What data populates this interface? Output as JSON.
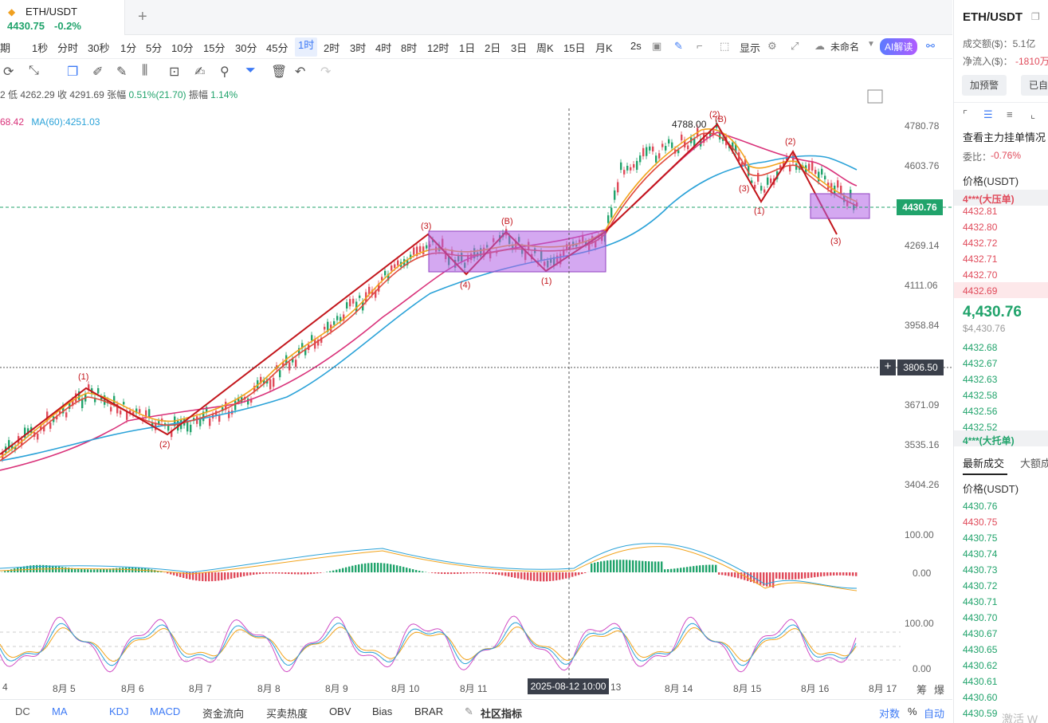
{
  "tab": {
    "symbol": "ETH/USDT",
    "price": "4430.75",
    "change": "-0.2%",
    "eth_icon": "ethereum-icon",
    "add_icon": "plus-icon"
  },
  "timeframes": [
    "期",
    "1秒",
    "分时",
    "30秒",
    "1分",
    "5分",
    "10分",
    "15分",
    "30分",
    "45分",
    "1时",
    "2时",
    "3时",
    "4时",
    "8时",
    "12时",
    "1日",
    "2日",
    "3日",
    "周K",
    "15日",
    "月K",
    "2s"
  ],
  "selected_timeframe": "1时",
  "toolbar_right": {
    "display": "显示",
    "unnamed": "未命名",
    "ai": "AI解读"
  },
  "info": {
    "line1_prefix": "2 低 4262.29 收 4291.69 张幅 ",
    "line1_amp": "0.51%(21.70)",
    "line1_sw_label": " 振幅 ",
    "line1_sw": "1.14%",
    "ma_prev": "68.42",
    "ma60": "MA(60):4251.03"
  },
  "y_axis": [
    "4780.78",
    "4603.76",
    "4269.14",
    "4111.06",
    "3958.84",
    "3671.09",
    "3535.16",
    "3404.26"
  ],
  "current_price_label": "4430.76",
  "crosshair_price": "3806.50",
  "crosshair_time": "2025-08-12 10:00",
  "high_label": "4788.00",
  "macd_axis": [
    "100.00",
    "0.00"
  ],
  "kdj_axis": [
    "100.00",
    "0.00"
  ],
  "x_axis": [
    "4",
    "8月 5",
    "8月 6",
    "8月 7",
    "8月 8",
    "8月 9",
    "8月 10",
    "8月 11",
    "13",
    "8月 14",
    "8月 15",
    "8月 16",
    "8月 17"
  ],
  "x_right": [
    "筹",
    "爆"
  ],
  "wave_labels": [
    {
      "t": "(1)"
    },
    {
      "t": "(2)"
    },
    {
      "t": "(3)"
    },
    {
      "t": "(4)"
    },
    {
      "t": "(B)"
    },
    {
      "t": "(1)"
    },
    {
      "t": "(2)"
    },
    {
      "t": "(B)"
    },
    {
      "t": "(3)"
    },
    {
      "t": "(1)"
    },
    {
      "t": "(2)"
    },
    {
      "t": "(3)"
    }
  ],
  "bottom_tabs": [
    "DC",
    "MA",
    "KDJ",
    "MACD",
    "资金流向",
    "买卖热度",
    "OBV",
    "Bias",
    "BRAR",
    "社区指标"
  ],
  "bottom_right": [
    "对数",
    "%",
    "自动"
  ],
  "right_panel": {
    "symbol": "ETH/USDT",
    "volume_label": "成交额($)：5.1亿",
    "netflow_label": "净流入($)：",
    "netflow_value": "-1810万",
    "alert_btn": "加预警",
    "auto_btn": "已自",
    "book_title": "查看主力挂单情况",
    "ratio_label": "委比：",
    "ratio_value": "-0.76%",
    "price_header": "价格(USDT)",
    "big_ask": "4***(大压单)",
    "asks": [
      "4432.81",
      "4432.80",
      "4432.72",
      "4432.71",
      "4432.70",
      "4432.69"
    ],
    "last_price": "4,430.76",
    "last_price_usd": "$4,430.76",
    "bids": [
      "4432.68",
      "4432.67",
      "4432.63",
      "4432.58",
      "4432.56",
      "4432.52"
    ],
    "big_bid": "4***(大托单)",
    "trades_tab": "最新成交",
    "big_trades_tab": "大额成",
    "trades_header": "价格(USDT)",
    "trades": [
      {
        "p": "4430.76",
        "side": "buy"
      },
      {
        "p": "4430.75",
        "side": "sell"
      },
      {
        "p": "4430.75",
        "side": "buy"
      },
      {
        "p": "4430.74",
        "side": "buy"
      },
      {
        "p": "4430.73",
        "side": "buy"
      },
      {
        "p": "4430.72",
        "side": "buy"
      },
      {
        "p": "4430.71",
        "side": "buy"
      },
      {
        "p": "4430.70",
        "side": "buy"
      },
      {
        "p": "4430.67",
        "side": "buy"
      },
      {
        "p": "4430.65",
        "side": "buy"
      },
      {
        "p": "4430.62",
        "side": "buy"
      },
      {
        "p": "4430.61",
        "side": "buy"
      },
      {
        "p": "4430.60",
        "side": "buy"
      },
      {
        "p": "4430.59",
        "side": "buy"
      }
    ],
    "watermark": "激活 W"
  }
}
